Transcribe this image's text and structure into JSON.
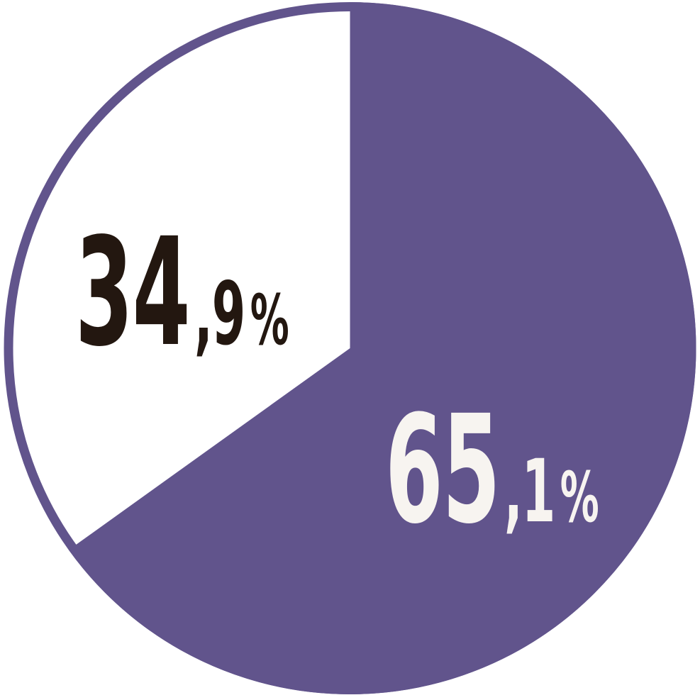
{
  "chart_data": {
    "type": "pie",
    "title": "",
    "categories": [
      "65,1%",
      "34,9%"
    ],
    "values": [
      65.1,
      34.9
    ],
    "slices": [
      {
        "label": "65,1%",
        "label_int": "65",
        "label_dec": ",1",
        "label_pct": "%",
        "value": 65.1,
        "color": "#61548C",
        "text_color": "#F7F4F0"
      },
      {
        "label": "34,9%",
        "label_int": "34",
        "label_dec": ",9",
        "label_pct": "%",
        "value": 34.9,
        "color": "#FFFFFF",
        "text_color": "#231710"
      }
    ],
    "start_angle_deg": 0,
    "direction": "clockwise",
    "outline": {
      "color": "#61548C",
      "width": 13
    },
    "background": "#FFFFFF",
    "legend": "none",
    "data_labels": "inside"
  }
}
